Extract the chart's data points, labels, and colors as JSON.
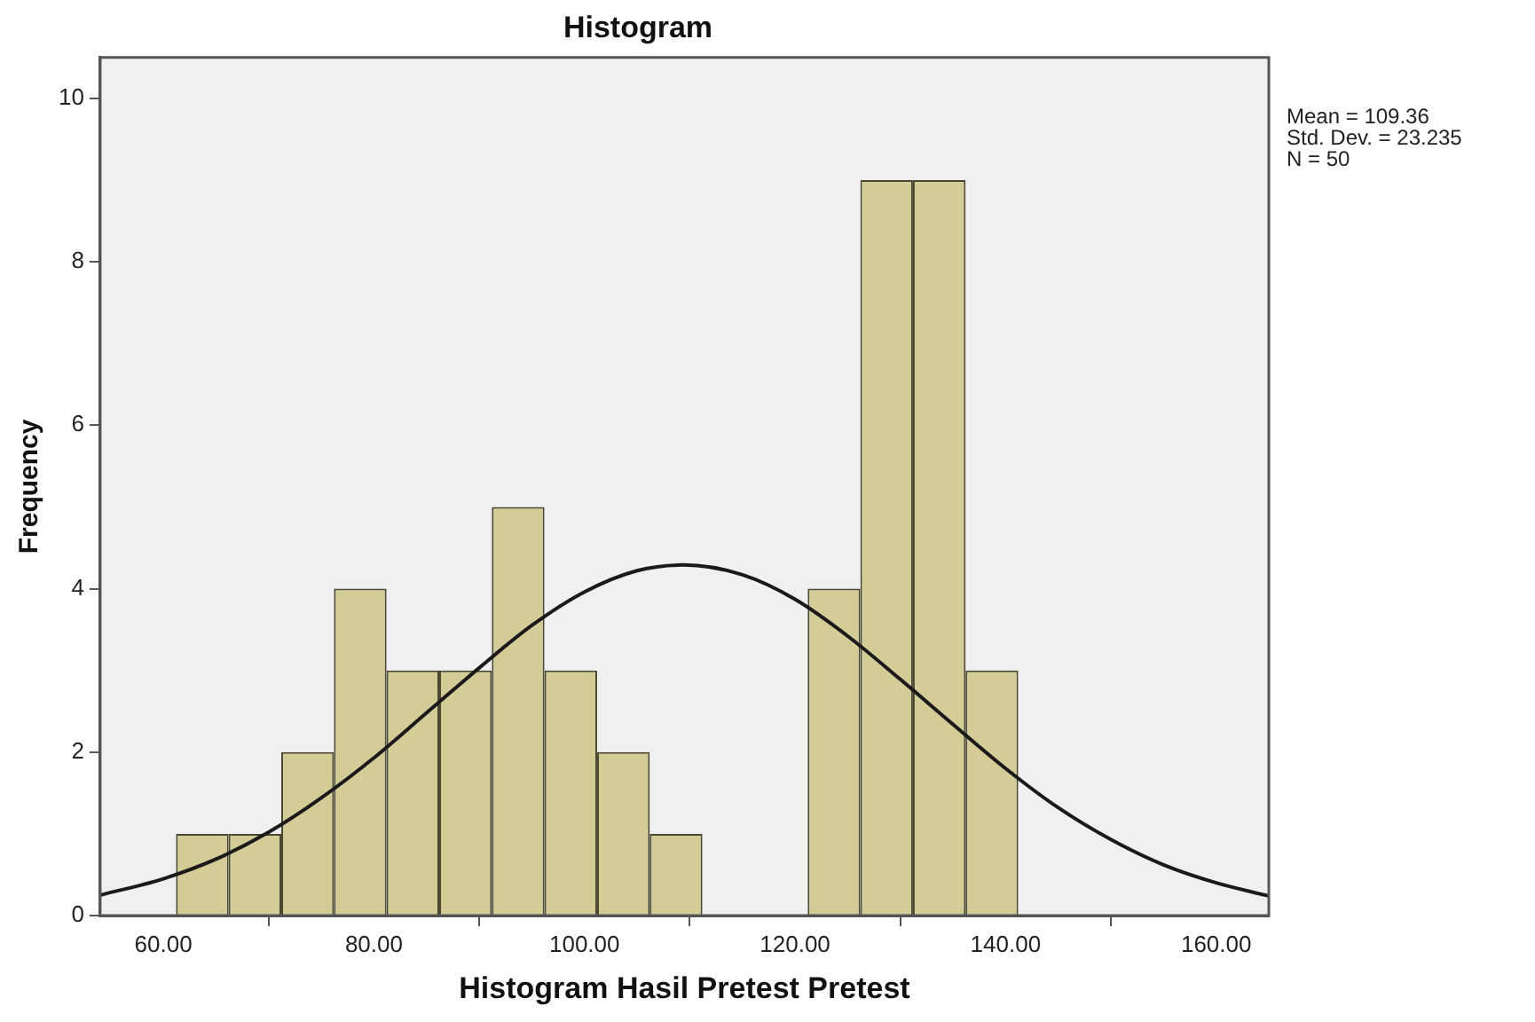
{
  "chart_data": {
    "type": "histogram",
    "title": "Histogram",
    "xlabel": "Histogram Hasil Pretest Pretest",
    "ylabel": "Frequency",
    "bins": [
      61.2,
      66.2,
      71.2,
      76.2,
      81.2,
      86.2,
      91.2,
      96.2,
      101.2,
      106.2,
      111.2,
      116.2,
      121.2,
      126.2,
      131.2,
      136.2,
      141.2
    ],
    "series": [
      {
        "color": "#d3cc97",
        "values": [
          1,
          1,
          2,
          4,
          3,
          3,
          5,
          3,
          2,
          1,
          0,
          0,
          4,
          9,
          9,
          3
        ]
      },
      {
        "type": "line",
        "color": "#1a1a1a",
        "marker": "none",
        "x": [
          54,
          60,
          65,
          70,
          75,
          80,
          85,
          90,
          95,
          100,
          105,
          109.36,
          115,
          120,
          125,
          130,
          135,
          140,
          145,
          150,
          155,
          160,
          165
        ],
        "values": [
          0.25,
          0.45,
          0.69,
          1.02,
          1.44,
          1.93,
          2.48,
          3.03,
          3.55,
          3.96,
          4.22,
          4.29,
          4.17,
          3.87,
          3.42,
          2.89,
          2.34,
          1.8,
          1.32,
          0.93,
          0.62,
          0.4,
          0.24
        ]
      }
    ],
    "xlim": [
      54,
      165
    ],
    "xticks": [
      {
        "value": 60,
        "label": "60.00"
      },
      {
        "value": 80,
        "label": "80.00"
      },
      {
        "value": 100,
        "label": "100.00"
      },
      {
        "value": 120,
        "label": "120.00"
      },
      {
        "value": 140,
        "label": "140.00"
      },
      {
        "value": 160,
        "label": "160.00"
      }
    ],
    "ylim": [
      0,
      10.5
    ],
    "yticks": [
      0,
      2,
      4,
      6,
      8,
      10
    ],
    "grid": false,
    "legend": false,
    "annotations": [
      "Mean = 109.36",
      "Std. Dev. = 23.235",
      "N = 50"
    ]
  }
}
